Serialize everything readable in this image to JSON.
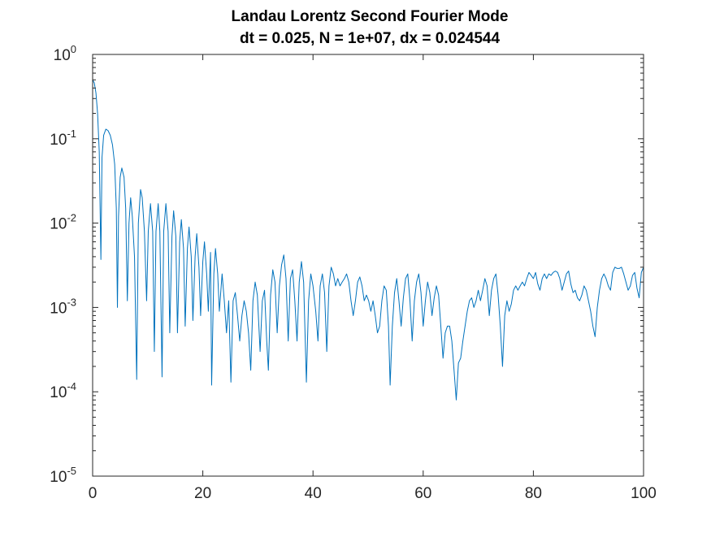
{
  "chart_data": {
    "type": "line",
    "title": "Landau Lorentz Second Fourier Mode",
    "subtitle": "dt = 0.025, N = 1e+07, dx = 0.024544",
    "xlabel": "",
    "ylabel": "",
    "xlim": [
      0,
      100
    ],
    "ylim": [
      1e-05,
      1
    ],
    "yscale": "log",
    "grid": false,
    "x_ticks": [
      0,
      20,
      40,
      60,
      80,
      100
    ],
    "x_tick_labels": [
      "0",
      "20",
      "40",
      "60",
      "80",
      "100"
    ],
    "y_ticks": [
      {
        "value": 1e-05,
        "base": "10",
        "exp": "-5"
      },
      {
        "value": 0.0001,
        "base": "10",
        "exp": "-4"
      },
      {
        "value": 0.001,
        "base": "10",
        "exp": "-3"
      },
      {
        "value": 0.01,
        "base": "10",
        "exp": "-2"
      },
      {
        "value": 0.1,
        "base": "10",
        "exp": "-1"
      },
      {
        "value": 1,
        "base": "10",
        "exp": "0"
      }
    ],
    "series": [
      {
        "color": "#0072bd",
        "points": [
          [
            0,
            0.5
          ],
          [
            0.3,
            0.46
          ],
          [
            0.6,
            0.35
          ],
          [
            0.9,
            0.2
          ],
          [
            1.2,
            0.07
          ],
          [
            1.5,
            0.0037
          ],
          [
            1.7,
            0.06
          ],
          [
            2.0,
            0.11
          ],
          [
            2.4,
            0.13
          ],
          [
            2.8,
            0.125
          ],
          [
            3.2,
            0.11
          ],
          [
            3.6,
            0.085
          ],
          [
            4.0,
            0.05
          ],
          [
            4.3,
            0.015
          ],
          [
            4.5,
            0.001
          ],
          [
            4.7,
            0.012
          ],
          [
            5.0,
            0.035
          ],
          [
            5.3,
            0.045
          ],
          [
            5.7,
            0.035
          ],
          [
            6.0,
            0.015
          ],
          [
            6.3,
            0.0012
          ],
          [
            6.6,
            0.01
          ],
          [
            6.9,
            0.02
          ],
          [
            7.2,
            0.012
          ],
          [
            7.6,
            0.004
          ],
          [
            8.0,
            0.00014
          ],
          [
            8.3,
            0.01
          ],
          [
            8.7,
            0.025
          ],
          [
            9.0,
            0.02
          ],
          [
            9.4,
            0.008
          ],
          [
            9.8,
            0.0012
          ],
          [
            10.1,
            0.008
          ],
          [
            10.5,
            0.017
          ],
          [
            10.9,
            0.008
          ],
          [
            11.2,
            0.0003
          ],
          [
            11.5,
            0.008
          ],
          [
            11.9,
            0.017
          ],
          [
            12.2,
            0.008
          ],
          [
            12.6,
            0.00015
          ],
          [
            12.9,
            0.008
          ],
          [
            13.3,
            0.017
          ],
          [
            13.7,
            0.008
          ],
          [
            14.0,
            0.0005
          ],
          [
            14.4,
            0.007
          ],
          [
            14.7,
            0.014
          ],
          [
            15.1,
            0.007
          ],
          [
            15.4,
            0.0005
          ],
          [
            15.8,
            0.006
          ],
          [
            16.1,
            0.011
          ],
          [
            16.5,
            0.005
          ],
          [
            16.8,
            0.0006
          ],
          [
            17.2,
            0.005
          ],
          [
            17.5,
            0.009
          ],
          [
            17.9,
            0.004
          ],
          [
            18.2,
            0.0007
          ],
          [
            18.6,
            0.004
          ],
          [
            18.9,
            0.0075
          ],
          [
            19.3,
            0.003
          ],
          [
            19.6,
            0.0008
          ],
          [
            20.0,
            0.0035
          ],
          [
            20.3,
            0.006
          ],
          [
            20.7,
            0.0025
          ],
          [
            21.0,
            0.0009
          ],
          [
            21.4,
            0.0045
          ],
          [
            21.6,
            0.00012
          ],
          [
            22.0,
            0.0025
          ],
          [
            22.3,
            0.005
          ],
          [
            22.7,
            0.0025
          ],
          [
            23.0,
            0.0009
          ],
          [
            23.5,
            0.0025
          ],
          [
            23.9,
            0.0012
          ],
          [
            24.3,
            0.0005
          ],
          [
            24.7,
            0.0012
          ],
          [
            25.1,
            0.00013
          ],
          [
            25.5,
            0.0012
          ],
          [
            25.9,
            0.0015
          ],
          [
            26.3,
            0.0008
          ],
          [
            26.7,
            0.0004
          ],
          [
            27.1,
            0.0008
          ],
          [
            27.5,
            0.0012
          ],
          [
            27.9,
            0.0009
          ],
          [
            28.3,
            0.0005
          ],
          [
            28.7,
            0.00018
          ],
          [
            29.1,
            0.0012
          ],
          [
            29.5,
            0.002
          ],
          [
            29.9,
            0.0014
          ],
          [
            30.4,
            0.0003
          ],
          [
            30.8,
            0.0012
          ],
          [
            31.2,
            0.0016
          ],
          [
            31.6,
            0.0004
          ],
          [
            31.9,
            0.00018
          ],
          [
            32.3,
            0.0014
          ],
          [
            32.7,
            0.0028
          ],
          [
            33.1,
            0.002
          ],
          [
            33.5,
            0.0005
          ],
          [
            33.9,
            0.0018
          ],
          [
            34.3,
            0.0032
          ],
          [
            34.7,
            0.0042
          ],
          [
            35.1,
            0.0022
          ],
          [
            35.5,
            0.0004
          ],
          [
            35.9,
            0.0022
          ],
          [
            36.3,
            0.0028
          ],
          [
            36.7,
            0.0012
          ],
          [
            37.1,
            0.0004
          ],
          [
            37.5,
            0.002
          ],
          [
            37.9,
            0.0035
          ],
          [
            38.3,
            0.002
          ],
          [
            38.8,
            0.00013
          ],
          [
            39.2,
            0.0012
          ],
          [
            39.6,
            0.0025
          ],
          [
            40.0,
            0.0018
          ],
          [
            40.5,
            0.0009
          ],
          [
            40.9,
            0.0004
          ],
          [
            41.3,
            0.0018
          ],
          [
            41.7,
            0.0025
          ],
          [
            42.1,
            0.0015
          ],
          [
            42.5,
            0.0003
          ],
          [
            42.9,
            0.0018
          ],
          [
            43.3,
            0.003
          ],
          [
            43.7,
            0.0025
          ],
          [
            44.1,
            0.0018
          ],
          [
            44.5,
            0.0022
          ],
          [
            44.9,
            0.0018
          ],
          [
            45.3,
            0.002
          ],
          [
            45.7,
            0.0022
          ],
          [
            46.1,
            0.0025
          ],
          [
            46.5,
            0.002
          ],
          [
            46.9,
            0.0012
          ],
          [
            47.3,
            0.0008
          ],
          [
            47.7,
            0.0012
          ],
          [
            48.1,
            0.002
          ],
          [
            48.5,
            0.0023
          ],
          [
            48.9,
            0.0018
          ],
          [
            49.3,
            0.0012
          ],
          [
            49.7,
            0.0014
          ],
          [
            50.1,
            0.0012
          ],
          [
            50.5,
            0.0009
          ],
          [
            50.9,
            0.0012
          ],
          [
            51.3,
            0.0008
          ],
          [
            51.7,
            0.0005
          ],
          [
            52.1,
            0.0006
          ],
          [
            52.5,
            0.0012
          ],
          [
            52.9,
            0.0018
          ],
          [
            53.3,
            0.0016
          ],
          [
            53.7,
            0.0006
          ],
          [
            54.0,
            0.00012
          ],
          [
            54.4,
            0.0006
          ],
          [
            54.8,
            0.0015
          ],
          [
            55.2,
            0.0022
          ],
          [
            55.6,
            0.0012
          ],
          [
            56.0,
            0.0006
          ],
          [
            56.4,
            0.0013
          ],
          [
            56.8,
            0.0022
          ],
          [
            57.2,
            0.0025
          ],
          [
            57.6,
            0.0012
          ],
          [
            58.0,
            0.0004
          ],
          [
            58.4,
            0.0012
          ],
          [
            58.8,
            0.002
          ],
          [
            59.2,
            0.0025
          ],
          [
            59.6,
            0.0015
          ],
          [
            60.0,
            0.0006
          ],
          [
            60.4,
            0.0012
          ],
          [
            60.8,
            0.002
          ],
          [
            61.2,
            0.0015
          ],
          [
            61.6,
            0.0008
          ],
          [
            62.0,
            0.0013
          ],
          [
            62.4,
            0.0018
          ],
          [
            62.8,
            0.0014
          ],
          [
            63.2,
            0.0006
          ],
          [
            63.6,
            0.00025
          ],
          [
            64.0,
            0.0005
          ],
          [
            64.4,
            0.0006
          ],
          [
            64.8,
            0.0006
          ],
          [
            65.2,
            0.0004
          ],
          [
            65.6,
            0.00018
          ],
          [
            66.0,
            8e-05
          ],
          [
            66.4,
            0.00022
          ],
          [
            66.8,
            0.00025
          ],
          [
            67.2,
            0.0004
          ],
          [
            67.6,
            0.0006
          ],
          [
            68.0,
            0.0009
          ],
          [
            68.4,
            0.0012
          ],
          [
            68.8,
            0.0013
          ],
          [
            69.2,
            0.001
          ],
          [
            69.6,
            0.0012
          ],
          [
            70.0,
            0.0016
          ],
          [
            70.4,
            0.0012
          ],
          [
            70.8,
            0.0016
          ],
          [
            71.2,
            0.0022
          ],
          [
            71.6,
            0.0018
          ],
          [
            72.0,
            0.0008
          ],
          [
            72.4,
            0.0016
          ],
          [
            72.8,
            0.0022
          ],
          [
            73.2,
            0.0025
          ],
          [
            73.6,
            0.0014
          ],
          [
            74.0,
            0.0006
          ],
          [
            74.4,
            0.0002
          ],
          [
            74.8,
            0.0008
          ],
          [
            75.2,
            0.0012
          ],
          [
            75.6,
            0.0009
          ],
          [
            76.0,
            0.0011
          ],
          [
            76.4,
            0.0016
          ],
          [
            76.8,
            0.0018
          ],
          [
            77.2,
            0.0016
          ],
          [
            77.6,
            0.0018
          ],
          [
            78.0,
            0.002
          ],
          [
            78.4,
            0.0018
          ],
          [
            78.8,
            0.0022
          ],
          [
            79.2,
            0.0026
          ],
          [
            79.6,
            0.0024
          ],
          [
            80.0,
            0.0022
          ],
          [
            80.4,
            0.0026
          ],
          [
            80.8,
            0.0019
          ],
          [
            81.2,
            0.0016
          ],
          [
            81.6,
            0.0022
          ],
          [
            82.0,
            0.0025
          ],
          [
            82.4,
            0.0022
          ],
          [
            82.8,
            0.0025
          ],
          [
            83.2,
            0.0024
          ],
          [
            83.6,
            0.0026
          ],
          [
            84.0,
            0.0027
          ],
          [
            84.4,
            0.0026
          ],
          [
            84.8,
            0.0022
          ],
          [
            85.2,
            0.0016
          ],
          [
            85.6,
            0.002
          ],
          [
            86.0,
            0.0025
          ],
          [
            86.4,
            0.0027
          ],
          [
            86.8,
            0.0019
          ],
          [
            87.2,
            0.0015
          ],
          [
            87.6,
            0.0016
          ],
          [
            88.0,
            0.0013
          ],
          [
            88.4,
            0.0012
          ],
          [
            88.8,
            0.0014
          ],
          [
            89.2,
            0.0018
          ],
          [
            89.6,
            0.0016
          ],
          [
            90.0,
            0.0012
          ],
          [
            90.4,
            0.0009
          ],
          [
            90.8,
            0.0006
          ],
          [
            91.2,
            0.00045
          ],
          [
            91.6,
            0.001
          ],
          [
            92.0,
            0.0016
          ],
          [
            92.4,
            0.0022
          ],
          [
            92.8,
            0.0025
          ],
          [
            93.2,
            0.0022
          ],
          [
            93.6,
            0.0018
          ],
          [
            94.0,
            0.0016
          ],
          [
            94.4,
            0.0026
          ],
          [
            94.8,
            0.003
          ],
          [
            95.2,
            0.0029
          ],
          [
            95.6,
            0.0029
          ],
          [
            96.0,
            0.003
          ],
          [
            96.4,
            0.0025
          ],
          [
            96.8,
            0.002
          ],
          [
            97.2,
            0.0016
          ],
          [
            97.6,
            0.0018
          ],
          [
            98.0,
            0.0024
          ],
          [
            98.4,
            0.0026
          ],
          [
            98.8,
            0.0017
          ],
          [
            99.2,
            0.0013
          ],
          [
            99.6,
            0.0026
          ],
          [
            100.0,
            0.003
          ]
        ]
      }
    ]
  }
}
